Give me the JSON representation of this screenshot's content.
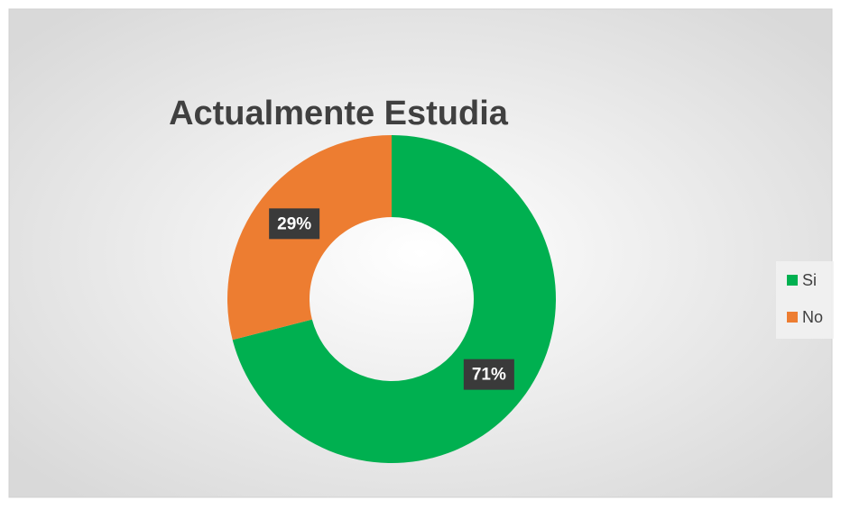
{
  "chart_data": {
    "type": "pie",
    "donut": true,
    "title": "Actualmente Estudia",
    "categories": [
      "Si",
      "No"
    ],
    "values": [
      71,
      29
    ],
    "value_labels": [
      "71%",
      "29%"
    ],
    "colors": [
      "#00b050",
      "#ed7d31"
    ],
    "legend": "right"
  }
}
